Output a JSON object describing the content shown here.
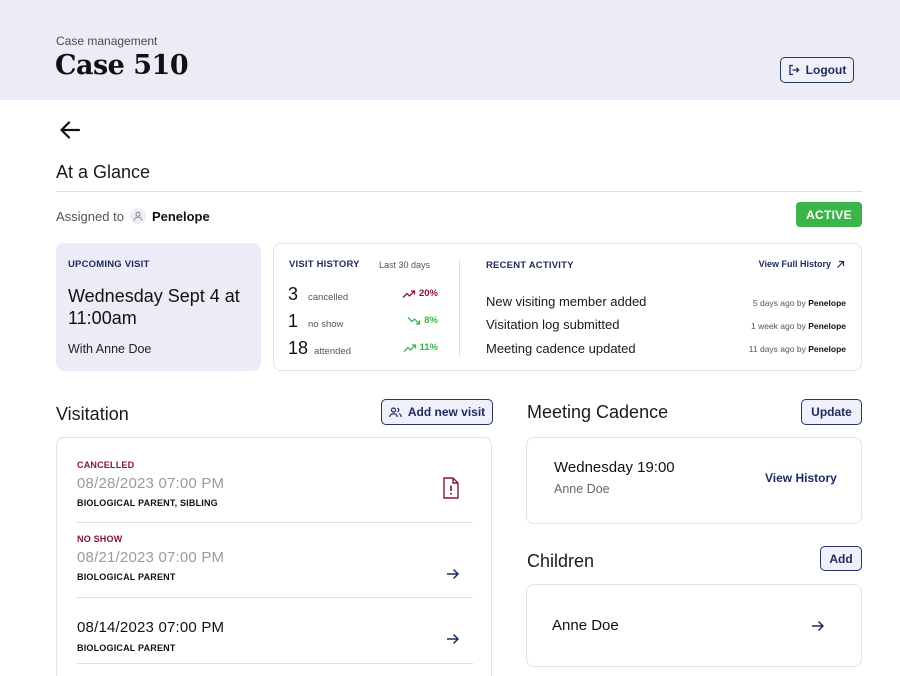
{
  "header": {
    "subtitle": "Case management",
    "title": "Case 510",
    "logout_label": "Logout"
  },
  "glance": {
    "title": "At a Glance",
    "assigned_label": "Assigned to",
    "assignee": "Penelope",
    "status": "ACTIVE"
  },
  "upcoming": {
    "caption": "UPCOMING VISIT",
    "when": "Wednesday Sept 4 at 11:00am",
    "with": "With Anne Doe"
  },
  "history": {
    "caption": "VISIT HISTORY",
    "range": "Last 30 days",
    "rows": [
      {
        "count": "3",
        "label": "cancelled",
        "change": "20%",
        "direction": "up",
        "color": "#8a1530"
      },
      {
        "count": "1",
        "label": "no show",
        "change": "8%",
        "direction": "down",
        "color": "#3bb54a"
      },
      {
        "count": "18",
        "label": "attended",
        "change": "11%",
        "direction": "up",
        "color": "#3bb54a"
      }
    ]
  },
  "activity": {
    "caption": "RECENT ACTIVITY",
    "link": "View Full History",
    "items": [
      {
        "text": "New visiting member added",
        "time": "5 days ago by",
        "by": "Penelope"
      },
      {
        "text": "Visitation log submitted",
        "time": "1 week ago by",
        "by": "Penelope"
      },
      {
        "text": "Meeting cadence updated",
        "time": "11 days ago by",
        "by": "Penelope"
      }
    ]
  },
  "visitation": {
    "title": "Visitation",
    "add_label": "Add new visit",
    "items": [
      {
        "status": "CANCELLED",
        "datetime": "08/28/2023 07:00 PM",
        "people": "BIOLOGICAL PARENT, SIBLING",
        "icon": "file-alert-icon"
      },
      {
        "status": "NO SHOW",
        "datetime": "08/21/2023 07:00 PM",
        "people": "BIOLOGICAL PARENT",
        "icon": "arrow-right-icon"
      },
      {
        "status": "",
        "datetime": "08/14/2023 07:00 PM",
        "people": "BIOLOGICAL PARENT",
        "icon": "arrow-right-icon"
      }
    ]
  },
  "cadence": {
    "title": "Meeting Cadence",
    "update_label": "Update",
    "schedule": "Wednesday 19:00",
    "person": "Anne Doe",
    "history_link": "View History"
  },
  "children": {
    "title": "Children",
    "add_label": "Add",
    "items": [
      {
        "name": "Anne Doe"
      }
    ]
  },
  "colors": {
    "accent": "#1e2a5e",
    "header_bg": "#ecebf6",
    "active_badge": "#3bb54a",
    "alert": "#8a1530"
  }
}
